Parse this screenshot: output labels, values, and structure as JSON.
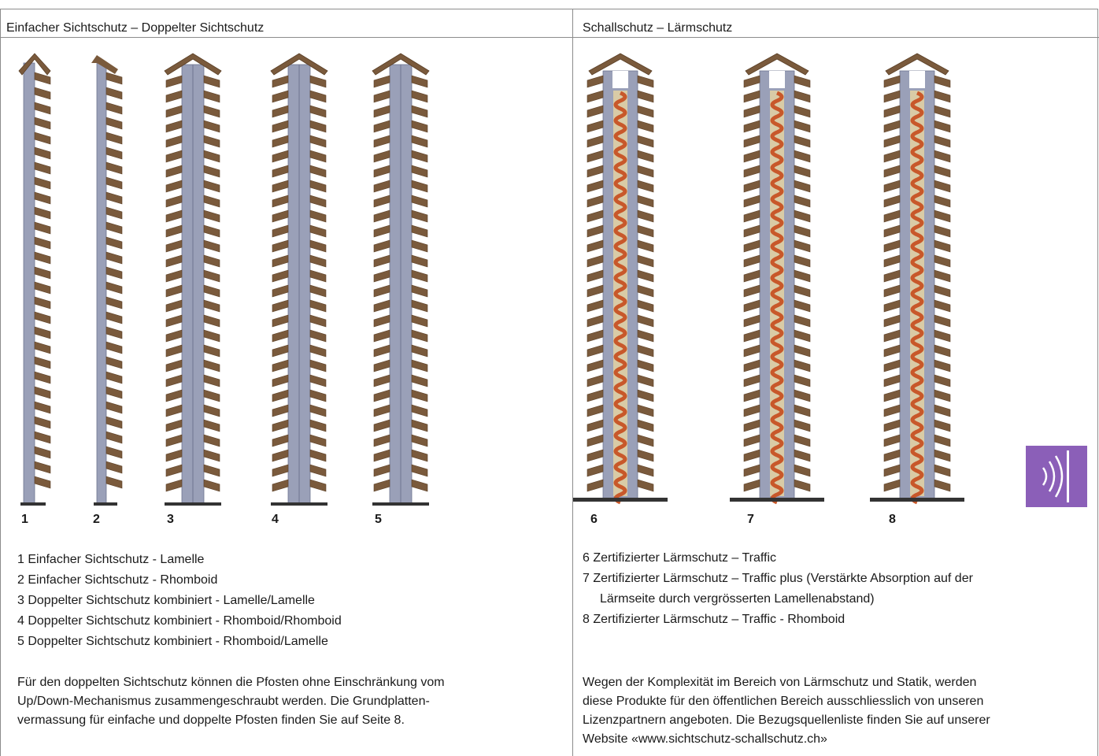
{
  "left": {
    "title": "Einfacher Sichtschutz – Doppelter Sichtschutz",
    "numbers": [
      "1",
      "2",
      "3",
      "4",
      "5"
    ],
    "legend": [
      "1 Einfacher Sichtschutz - Lamelle",
      "2 Einfacher Sichtschutz - Rhomboid",
      "3 Doppelter Sichtschutz kombiniert - Lamelle/Lamelle",
      "4 Doppelter Sichtschutz kombiniert - Rhomboid/Rhomboid",
      "5 Doppelter Sichtschutz kombiniert - Rhomboid/Lamelle"
    ],
    "paragraph": [
      "Für den doppelten Sichtschutz können die Pfosten ohne Einschränkung vom",
      "Up/Down-Mechanismus zusammengeschraubt werden. Die Grundplatten-",
      "vermassung für einfache und doppelte Pfosten finden Sie auf Seite 8."
    ]
  },
  "right": {
    "title": "Schallschutz – Lärmschutz",
    "numbers": [
      "6",
      "7",
      "8"
    ],
    "legend": [
      "6 Zertifizierter Lärmschutz – Traffic",
      "7 Zertifizierter Lärmschutz – Traffic plus (Verstärkte Absorption auf der",
      "Lärmseite durch vergrösserten Lamellenabstand)",
      "8 Zertifizierter Lärmschutz – Traffic - Rhomboid"
    ],
    "paragraph": [
      "Wegen der Komplexität im Bereich von Lärmschutz und Statik, werden",
      "diese Produkte für den öffentlichen Bereich ausschliesslich von unseren",
      "Lizenzpartnern angeboten. Die Bezugsquellenliste finden Sie auf unserer",
      "Website «www.sichtschutz-schallschutz.ch»"
    ]
  },
  "colors": {
    "post": "#9aa0b8",
    "post_dark": "#6f7590",
    "slat": "#7a5a3c",
    "slat_light": "#a88460",
    "absorber": "#c8582a",
    "badge": "#8b5fb8"
  },
  "icons": {
    "badge": "sound-wave-icon"
  }
}
